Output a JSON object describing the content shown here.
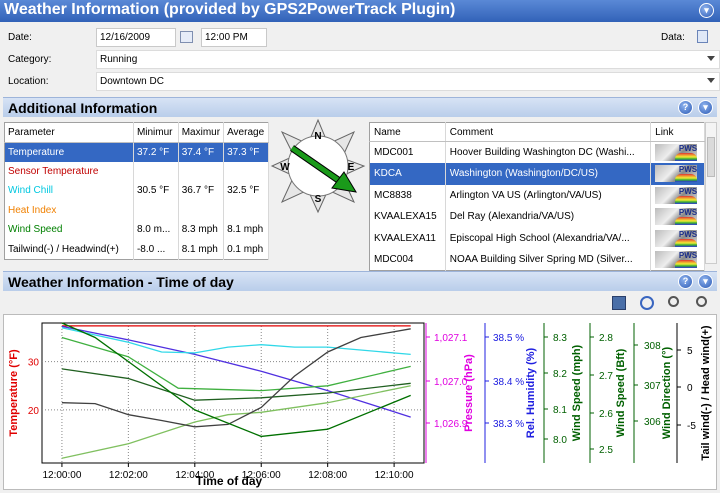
{
  "title": "Weather Information (provided by GPS2PowerTrack Plugin)",
  "form": {
    "date_label": "Date:",
    "date_value": "12/16/2009",
    "time_value": "12:00 PM",
    "data_label": "Data:",
    "category_label": "Category:",
    "category_value": "Running",
    "location_label": "Location:",
    "location_value": "Downtown DC"
  },
  "additional": {
    "title": "Additional Information",
    "columns": [
      "Parameter",
      "Minimur",
      "Maximur",
      "Average"
    ],
    "rows": [
      {
        "param": "Temperature",
        "min": "37.2 °F",
        "max": "37.4 °F",
        "avg": "37.3 °F",
        "color": "#ffffff",
        "selected": true
      },
      {
        "param": "Sensor Temperature",
        "min": "",
        "max": "",
        "avg": "",
        "color": "#c00000",
        "selected": false
      },
      {
        "param": "Wind Chill",
        "min": "30.5 °F",
        "max": "36.7 °F",
        "avg": "32.5 °F",
        "color": "#00c8e0",
        "selected": false
      },
      {
        "param": "Heat Index",
        "min": "",
        "max": "",
        "avg": "",
        "color": "#f08000",
        "selected": false
      },
      {
        "param": "Wind Speed",
        "min": "8.0 m...",
        "max": "8.3 mph",
        "avg": "8.1 mph",
        "color": "#008000",
        "selected": false
      },
      {
        "param": "Tailwind(-) / Headwind(+)",
        "min": "-8.0 ...",
        "max": "8.1 mph",
        "avg": "0.1 mph",
        "color": "#000000",
        "selected": false
      }
    ],
    "compass": {
      "n": "N",
      "e": "E",
      "s": "S",
      "w": "W"
    },
    "station_columns": [
      "Name",
      "Comment",
      "Link"
    ],
    "stations": [
      {
        "name": "MDC001",
        "comment": "Hoover Building Washington DC (Washi...",
        "selected": false
      },
      {
        "name": "KDCA",
        "comment": "Washington (Washington/DC/US)",
        "selected": true
      },
      {
        "name": "MC8838",
        "comment": "Arlington VA US (Arlington/VA/US)",
        "selected": false
      },
      {
        "name": "KVAALEXA15",
        "comment": "Del Ray (Alexandria/VA/US)",
        "selected": false
      },
      {
        "name": "KVAALEXA11",
        "comment": "Episcopal High School (Alexandria/VA/...",
        "selected": false
      },
      {
        "name": "MDC004",
        "comment": "NOAA Building Silver Spring MD (Silver...",
        "selected": false
      }
    ],
    "pws_label": "PWS"
  },
  "chart_section": {
    "title": "Weather Information - Time of day"
  },
  "chart_data": {
    "type": "line",
    "xlabel": "Time of day",
    "x_ticks": [
      "12:00:00",
      "12:02:00",
      "12:04:00",
      "12:06:00",
      "12:08:00",
      "12:10:00"
    ],
    "x_minutes": [
      0,
      2,
      4,
      6,
      8,
      10
    ],
    "axes": [
      {
        "label": "Temperature (°F)",
        "color": "#e00000",
        "ticks": [
          "30",
          "20"
        ]
      },
      {
        "label": "Pressure (hPa)",
        "color": "#e000e0",
        "ticks": [
          "1,027.1",
          "1,027.0",
          "1,026.9"
        ]
      },
      {
        "label": "Rel. Humidity (%)",
        "color": "#2020e0",
        "ticks": [
          "38.5 %",
          "38.4 %",
          "38.3 %"
        ]
      },
      {
        "label": "Wind Speed (mph)",
        "color": "#006000",
        "ticks": [
          "8.3",
          "8.2",
          "8.1",
          "8.0"
        ]
      },
      {
        "label": "Wind Speed (Bft)",
        "color": "#006000",
        "ticks": [
          "2.8",
          "2.7",
          "2.6",
          "2.5"
        ]
      },
      {
        "label": "Wind Direction (°)",
        "color": "#006000",
        "ticks": [
          "308",
          "307",
          "306"
        ]
      },
      {
        "label": "Tail wind(-) / Head wind(+)",
        "color": "#000000",
        "ticks": [
          "5",
          "0",
          "-5"
        ]
      }
    ],
    "series": [
      {
        "color": "#e00000",
        "x": [
          0,
          10.5
        ],
        "y": [
          37.4,
          37.4
        ]
      },
      {
        "color": "#5030e0",
        "x": [
          0,
          2,
          4,
          6,
          8,
          10.5
        ],
        "y": [
          37.3,
          34.5,
          31.5,
          28.0,
          24.0,
          18.5
        ]
      },
      {
        "color": "#30d8e8",
        "x": [
          0,
          2,
          3,
          4,
          5,
          6,
          7,
          8,
          10.5
        ],
        "y": [
          37.0,
          34.0,
          32.0,
          31.8,
          33.0,
          33.5,
          33.0,
          33.0,
          31.5
        ]
      },
      {
        "color": "#40b040",
        "x": [
          0,
          2,
          3.5,
          6,
          8,
          10.5
        ],
        "y": [
          35.0,
          31.0,
          24.5,
          24.0,
          25.0,
          29.0
        ]
      },
      {
        "color": "#80c060",
        "x": [
          0,
          2,
          4,
          5,
          6,
          8,
          10.5
        ],
        "y": [
          10.0,
          13.0,
          17.5,
          19.0,
          19.5,
          21.5,
          25.0
        ]
      },
      {
        "color": "#206020",
        "x": [
          0,
          2,
          4,
          6,
          8,
          10.5
        ],
        "y": [
          28.5,
          26.5,
          22.0,
          22.5,
          23.5,
          25.5
        ]
      },
      {
        "color": "#404040",
        "x": [
          0,
          1,
          2,
          3,
          4,
          5,
          6,
          7,
          8,
          9,
          10.5
        ],
        "y": [
          21.5,
          21.3,
          19.0,
          17.8,
          16.5,
          17.0,
          20.5,
          27.0,
          32.0,
          35.0,
          36.8
        ]
      },
      {
        "color": "#007000",
        "x": [
          0,
          1,
          2,
          4,
          6,
          8,
          10.5
        ],
        "y": [
          38.0,
          35.0,
          30.0,
          20.0,
          14.5,
          16.0,
          23.0
        ]
      }
    ],
    "ylim": [
      9,
      38
    ],
    "xlim": [
      -0.6,
      10.9
    ],
    "grid": true
  }
}
